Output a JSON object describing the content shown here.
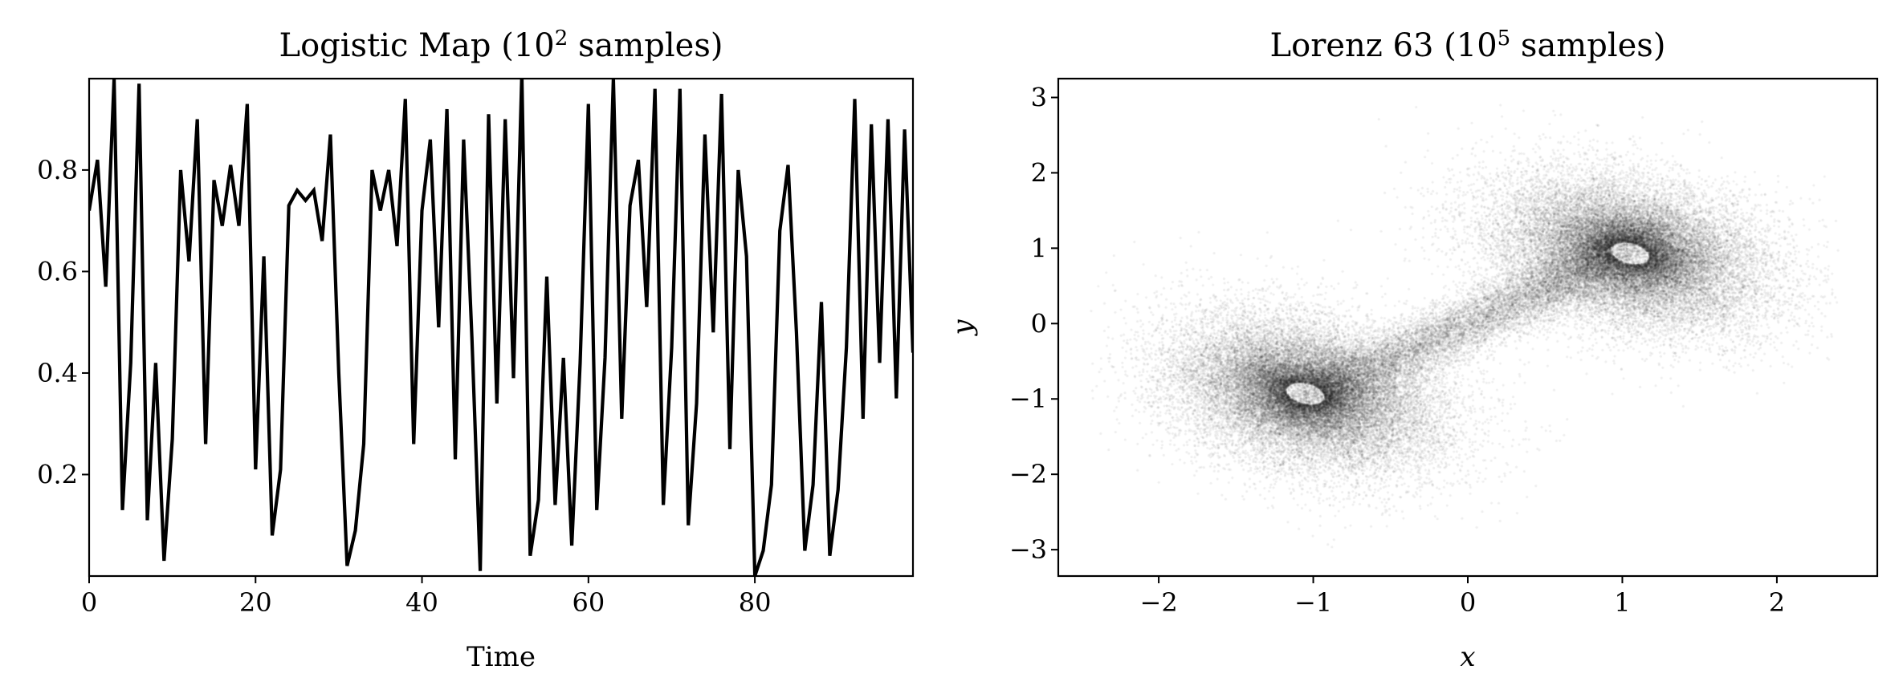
{
  "colors": {
    "line": "#000000",
    "points": "#000000",
    "background": "#ffffff"
  },
  "chart_data": [
    {
      "type": "line",
      "title_main": "Logistic Map (10",
      "title_sup": "2",
      "title_tail": " samples)",
      "xlabel": "Time",
      "ylabel": "",
      "xlim": [
        0,
        99
      ],
      "ylim": [
        0.0,
        0.98
      ],
      "xticks": [
        0,
        20,
        40,
        60,
        80
      ],
      "xtick_labels": [
        "0",
        "20",
        "40",
        "60",
        "80"
      ],
      "yticks": [
        0.2,
        0.4,
        0.6,
        0.8
      ],
      "ytick_labels": [
        "0.2",
        "0.4",
        "0.6",
        "0.8"
      ],
      "grid": false,
      "series": [
        {
          "x": [
            0,
            1,
            2,
            3,
            4,
            5,
            6,
            7,
            8,
            9,
            10,
            11,
            12,
            13,
            14,
            15,
            16,
            17,
            18,
            19,
            20,
            21,
            22,
            23,
            24,
            25,
            26,
            27,
            28,
            29,
            30,
            31,
            32,
            33,
            34,
            35,
            36,
            37,
            38,
            39,
            40,
            41,
            42,
            43,
            44,
            45,
            46,
            47,
            48,
            49,
            50,
            51,
            52,
            53,
            54,
            55,
            56,
            57,
            58,
            59,
            60,
            61,
            62,
            63,
            64,
            65,
            66,
            67,
            68,
            69,
            70,
            71,
            72,
            73,
            74,
            75,
            76,
            77,
            78,
            79,
            80,
            81,
            82,
            83,
            84,
            85,
            86,
            87,
            88,
            89,
            90,
            91,
            92,
            93,
            94,
            95,
            96,
            97,
            98,
            99
          ],
          "values": [
            0.72,
            0.82,
            0.57,
            0.98,
            0.13,
            0.42,
            0.97,
            0.11,
            0.42,
            0.03,
            0.27,
            0.8,
            0.62,
            0.9,
            0.26,
            0.78,
            0.69,
            0.81,
            0.69,
            0.93,
            0.21,
            0.63,
            0.08,
            0.21,
            0.73,
            0.76,
            0.74,
            0.76,
            0.66,
            0.87,
            0.4,
            0.02,
            0.09,
            0.26,
            0.8,
            0.72,
            0.8,
            0.65,
            0.94,
            0.26,
            0.72,
            0.86,
            0.49,
            0.92,
            0.23,
            0.86,
            0.47,
            0.01,
            0.91,
            0.34,
            0.9,
            0.39,
            0.99,
            0.04,
            0.15,
            0.59,
            0.14,
            0.43,
            0.06,
            0.42,
            0.93,
            0.13,
            0.43,
            0.98,
            0.31,
            0.73,
            0.82,
            0.53,
            0.96,
            0.14,
            0.45,
            0.96,
            0.1,
            0.34,
            0.87,
            0.48,
            0.95,
            0.25,
            0.8,
            0.63,
            0.0,
            0.05,
            0.18,
            0.68,
            0.81,
            0.48,
            0.05,
            0.18,
            0.54,
            0.04,
            0.17,
            0.45,
            0.94,
            0.31,
            0.89,
            0.42,
            0.9,
            0.35,
            0.88,
            0.44
          ]
        }
      ]
    },
    {
      "type": "scatter",
      "title_main": "Lorenz 63 (10",
      "title_sup": "5",
      "title_tail": " samples)",
      "xlabel": "x",
      "ylabel": "y",
      "xlim": [
        -2.65,
        2.65
      ],
      "ylim": [
        -3.35,
        3.25
      ],
      "xticks": [
        -2,
        -1,
        0,
        1,
        2
      ],
      "xtick_labels": [
        "−2",
        "−1",
        "0",
        "1",
        "2"
      ],
      "yticks": [
        -3,
        -2,
        -1,
        0,
        1,
        2,
        3
      ],
      "ytick_labels": [
        "−3",
        "−2",
        "−1",
        "0",
        "1",
        "2",
        "3"
      ],
      "grid": false,
      "points": {
        "count": 100000,
        "description_values": "two-lobed attractor cloud centred near (-1.05, -0.93) and (1.05, 0.93), spread roughly along the line y = x",
        "lobes": [
          {
            "center": [
              -1.05,
              -0.93
            ],
            "spread": [
              0.55,
              0.75
            ]
          },
          {
            "center": [
              1.05,
              0.93
            ],
            "spread": [
              0.55,
              0.75
            ]
          }
        ],
        "x_range": [
          -2.45,
          2.4
        ],
        "y_range": [
          -3.0,
          2.9
        ]
      }
    }
  ]
}
